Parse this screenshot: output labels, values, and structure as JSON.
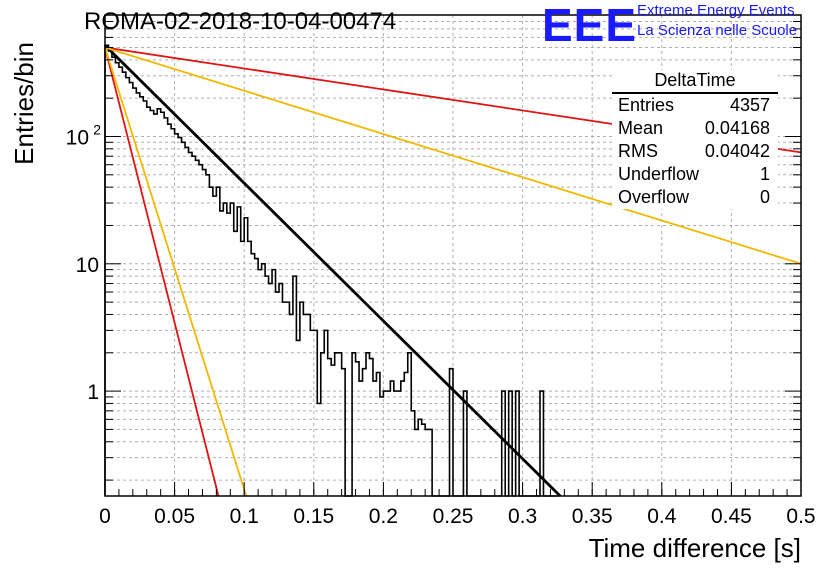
{
  "title": "ROMA-02-2018-10-04-00474",
  "logo": {
    "mark": "EEE",
    "line1": "Extreme Energy Events",
    "line2": "La Scienza nelle Scuole"
  },
  "stats": {
    "title": "DeltaTime",
    "rows": [
      {
        "label": "Entries",
        "value": "4357"
      },
      {
        "label": "Mean",
        "value": "0.04168"
      },
      {
        "label": "RMS",
        "value": "0.04042"
      },
      {
        "label": "Underflow",
        "value": "1"
      },
      {
        "label": "Overflow",
        "value": "0"
      }
    ]
  },
  "colors": {
    "hist": "#000000",
    "fit": "#000000",
    "red": "#e01414",
    "orange": "#f2b800",
    "logo": "#1a1aff"
  },
  "chart_data": {
    "type": "line",
    "scale_y": "log",
    "xlabel": "Time difference [s]",
    "ylabel": "Entries/bin",
    "xlim": [
      0,
      0.5
    ],
    "ylim": [
      0.15,
      900
    ],
    "x_ticks": [
      {
        "v": 0,
        "label": "0"
      },
      {
        "v": 0.05,
        "label": "0.05"
      },
      {
        "v": 0.1,
        "label": "0.1"
      },
      {
        "v": 0.15,
        "label": "0.15"
      },
      {
        "v": 0.2,
        "label": "0.2"
      },
      {
        "v": 0.25,
        "label": "0.25"
      },
      {
        "v": 0.3,
        "label": "0.3"
      },
      {
        "v": 0.35,
        "label": "0.35"
      },
      {
        "v": 0.4,
        "label": "0.4"
      },
      {
        "v": 0.45,
        "label": "0.45"
      },
      {
        "v": 0.5,
        "label": "0.5"
      }
    ],
    "y_ticks": [
      {
        "v": 1,
        "label": "1"
      },
      {
        "v": 10,
        "label": "10"
      },
      {
        "v": 100,
        "label": "10",
        "sup": "2"
      }
    ],
    "bin_width": 0.0025,
    "histogram": [
      520,
      470,
      420,
      380,
      350,
      320,
      290,
      265,
      240,
      220,
      205,
      190,
      170,
      160,
      150,
      165,
      155,
      140,
      125,
      115,
      105,
      98,
      90,
      82,
      75,
      70,
      65,
      60,
      55,
      50,
      40,
      34,
      40,
      26,
      30,
      25,
      30,
      18,
      28,
      15,
      23,
      15,
      12,
      11,
      9,
      10,
      8,
      7,
      9,
      6,
      7,
      5,
      5,
      4,
      8,
      2.5,
      5,
      4,
      4,
      3,
      3,
      0.8,
      2,
      3,
      1.8,
      1.6,
      2,
      2,
      1.5,
      0.12,
      0.12,
      2,
      1.7,
      1.2,
      1.5,
      2,
      1.8,
      1.2,
      1.4,
      0.9,
      1.0,
      1.0,
      1.2,
      1.0,
      1.0,
      1.2,
      1.4,
      2.0,
      0.7,
      0.5,
      0.6,
      0.55,
      0.5,
      0.5,
      0.12,
      0.12,
      0.12,
      0.12,
      0.12,
      1.5,
      0.12,
      0.12,
      0.12,
      1.0,
      0.12,
      0.12,
      0.12,
      0.12,
      0.12,
      0.12,
      0.12,
      0.12,
      0.12,
      0.12,
      1.0,
      0.12,
      1.0,
      0.12,
      1.0,
      0.12,
      0.12,
      0.12,
      0.12,
      0.12,
      0.12,
      1.0,
      0.12,
      0.12,
      0.12,
      0.12
    ],
    "series": [
      {
        "name": "fit",
        "color": "fit",
        "x": [
          0,
          0.327
        ],
        "y": [
          520,
          0.15
        ]
      },
      {
        "name": "red-steep",
        "color": "red",
        "x": [
          0,
          0.0815
        ],
        "y": [
          500,
          0.15
        ]
      },
      {
        "name": "orange-steep",
        "color": "orange",
        "x": [
          0,
          0.1015
        ],
        "y": [
          500,
          0.15
        ]
      },
      {
        "name": "red-shallow",
        "color": "red",
        "x": [
          0,
          0.5
        ],
        "y": [
          500,
          75
        ]
      },
      {
        "name": "orange-shallow",
        "color": "orange",
        "x": [
          0,
          0.5
        ],
        "y": [
          500,
          10
        ]
      }
    ]
  }
}
